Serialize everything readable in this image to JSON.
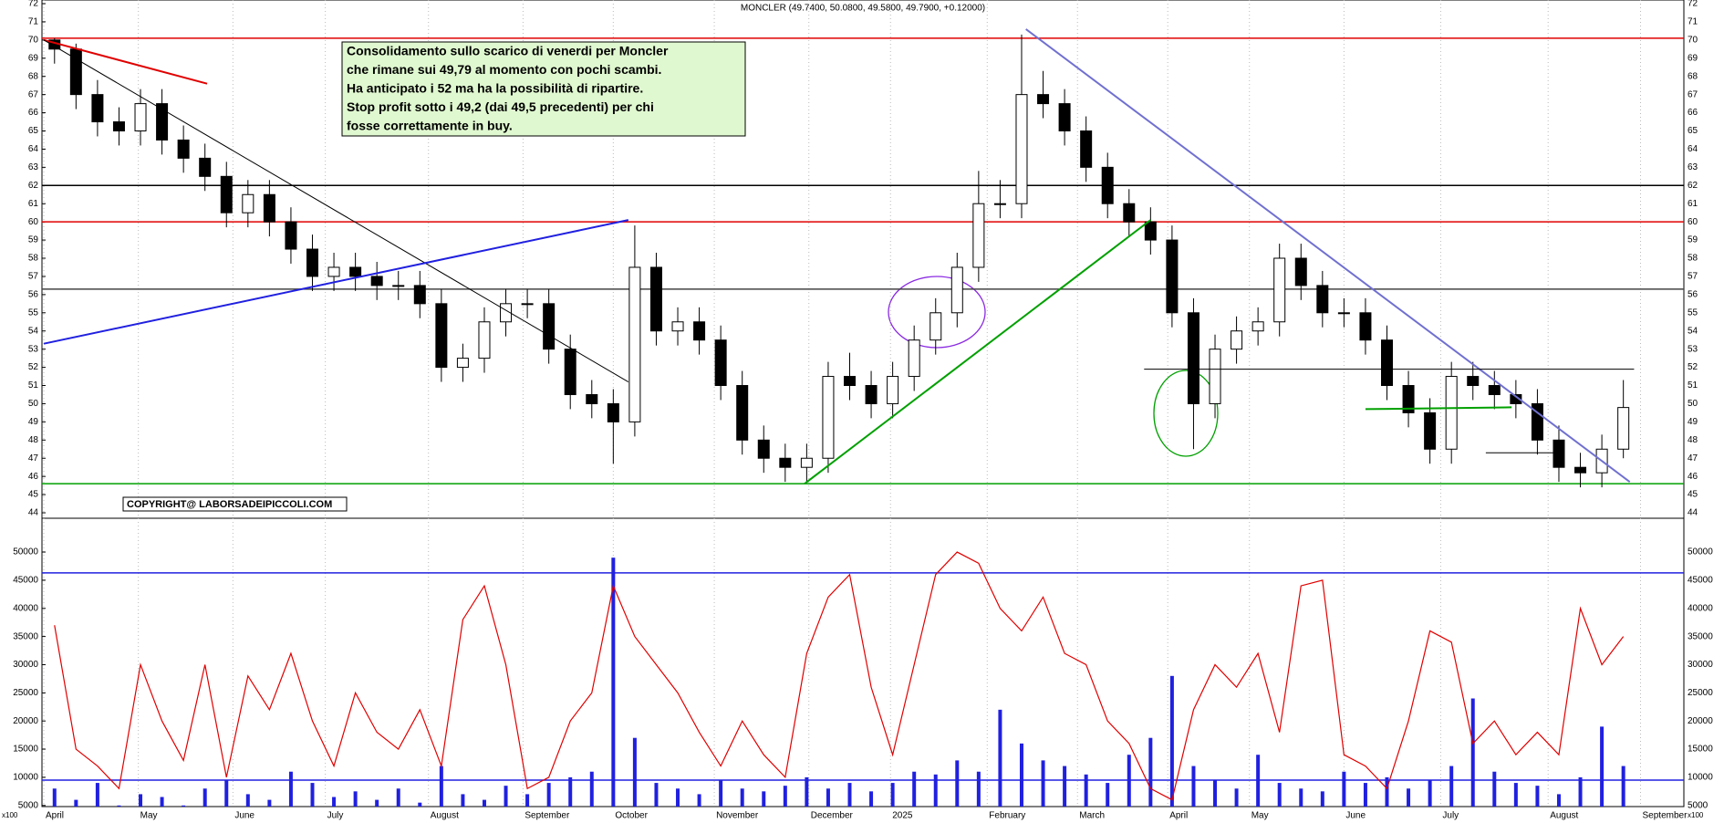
{
  "chart_data": [
    {
      "type": "candlestick",
      "title": "MONCLER (49.7400, 50.0800, 49.5800, 49.7900, +0.12000)",
      "annotation": [
        "Consolidamento sullo scarico di venerdi per Moncler",
        "che rimane sui 49,79 al momento con pochi scambi.",
        "Ha anticipato i 52 ma ha la possibilità di ripartire.",
        "Stop profit sotto i 49,2 (dai 49,5 precedenti) per chi",
        "fosse correttamente in buy."
      ],
      "copyright": "COPYRIGHT@ LABORSADEIPICCOLI.COM",
      "open": [
        70,
        69.5,
        67,
        65.5,
        65,
        66.5,
        64.5,
        63.5,
        62.5,
        60.5,
        61.5,
        60,
        58.5,
        57,
        57.5,
        57,
        56.5,
        56.5,
        55.5,
        52,
        52.5,
        54.5,
        55.5,
        55.5,
        53,
        50.5,
        50,
        49,
        57.5,
        54,
        54.5,
        53.5,
        51,
        48,
        47,
        46.5,
        47,
        51.5,
        51,
        50,
        51.5,
        53.5,
        55,
        57.5,
        61,
        61,
        67,
        66.5,
        65,
        63,
        61,
        60,
        59,
        55,
        50,
        53,
        54,
        54.5,
        58,
        56.5,
        55,
        55,
        53.5,
        51,
        49.5,
        47.5,
        51.5,
        51,
        50.5,
        50,
        48,
        46.5,
        46.2,
        47.5
      ],
      "high": [
        70.1,
        69.8,
        67.8,
        66.3,
        67.3,
        67.3,
        65.3,
        64.3,
        63.3,
        62.3,
        62.3,
        60.8,
        59.3,
        58.3,
        58.3,
        57.8,
        57.3,
        57.3,
        56.3,
        53.3,
        55.3,
        56.3,
        56.3,
        56.3,
        53.8,
        51.3,
        50.8,
        59.8,
        58.3,
        55.3,
        55.3,
        54.3,
        51.8,
        48.8,
        47.8,
        47.8,
        52.3,
        52.8,
        51.8,
        52.3,
        54.3,
        55.8,
        58.3,
        62.8,
        62.3,
        70.3,
        68.3,
        67.3,
        65.8,
        63.8,
        61.8,
        60.8,
        59.8,
        55.8,
        53.8,
        54.8,
        55.3,
        58.8,
        58.8,
        57.3,
        55.8,
        55.8,
        54.3,
        51.8,
        50.3,
        52.3,
        52.3,
        51.8,
        51.3,
        50.8,
        48.8,
        47.3,
        48.3,
        51.3
      ],
      "low": [
        68.7,
        66.2,
        64.7,
        64.2,
        64.2,
        63.7,
        62.7,
        61.7,
        59.7,
        59.7,
        59.2,
        57.7,
        56.2,
        56.2,
        56.2,
        55.7,
        55.7,
        54.7,
        51.2,
        51.2,
        51.7,
        53.7,
        54.7,
        52.2,
        49.7,
        49.2,
        46.7,
        48.2,
        53.2,
        53.2,
        52.7,
        50.2,
        47.2,
        46.2,
        45.7,
        45.7,
        46.2,
        50.2,
        49.2,
        49.2,
        50.7,
        52.7,
        54.2,
        56.7,
        60.2,
        60.2,
        65.7,
        64.2,
        62.2,
        60.2,
        59.2,
        58.2,
        54.2,
        47.5,
        49.2,
        52.2,
        53.2,
        53.7,
        55.7,
        54.2,
        54.2,
        52.7,
        50.2,
        48.7,
        46.7,
        46.7,
        50.2,
        49.7,
        49.2,
        47.2,
        45.7,
        45.4,
        45.4,
        47.0
      ],
      "close": [
        69.5,
        67,
        65.5,
        65,
        66.5,
        64.5,
        63.5,
        62.5,
        60.5,
        61.5,
        60,
        58.5,
        57,
        57.5,
        57,
        56.5,
        56.5,
        55.5,
        52,
        52.5,
        54.5,
        55.5,
        55.5,
        53,
        50.5,
        50,
        49,
        57.5,
        54,
        54.5,
        53.5,
        51,
        48,
        47,
        46.5,
        47,
        51.5,
        51,
        50,
        51.5,
        53.5,
        55,
        57.5,
        61,
        61,
        67,
        66.5,
        65,
        63,
        61,
        60,
        59,
        55,
        50,
        53,
        54,
        54.5,
        58,
        56.5,
        55,
        55,
        53.5,
        51,
        49.5,
        47.5,
        51.5,
        51,
        50.5,
        50,
        48,
        46.5,
        46.2,
        47.5,
        49.79
      ],
      "xlim": [
        0,
        74
      ],
      "xticks": [
        {
          "value": 0,
          "label": "April"
        },
        {
          "value": 4.4,
          "label": "May"
        },
        {
          "value": 8.8,
          "label": "June"
        },
        {
          "value": 13.1,
          "label": "July"
        },
        {
          "value": 17.9,
          "label": "August"
        },
        {
          "value": 22.3,
          "label": "September"
        },
        {
          "value": 26.5,
          "label": "October"
        },
        {
          "value": 31.2,
          "label": "November"
        },
        {
          "value": 35.6,
          "label": "December"
        },
        {
          "value": 39.4,
          "label": "2025"
        },
        {
          "value": 43.9,
          "label": "February"
        },
        {
          "value": 48.1,
          "label": "March"
        },
        {
          "value": 52.3,
          "label": "April"
        },
        {
          "value": 56.1,
          "label": "May"
        },
        {
          "value": 60.5,
          "label": "June"
        },
        {
          "value": 65,
          "label": "July"
        },
        {
          "value": 70,
          "label": "August"
        },
        {
          "value": 74.3,
          "label": "September"
        }
      ],
      "ylim": [
        43.7,
        72.2
      ],
      "yticks": [
        44,
        45,
        46,
        47,
        48,
        49,
        50,
        51,
        52,
        53,
        54,
        55,
        56,
        57,
        58,
        59,
        60,
        61,
        62,
        63,
        64,
        65,
        66,
        67,
        68,
        69,
        70,
        71,
        72
      ],
      "hlines": [
        {
          "value": 70.1,
          "color": "#e00000"
        },
        {
          "value": 62,
          "color": "#000000"
        },
        {
          "value": 60,
          "color": "#e00000"
        },
        {
          "value": 56.3,
          "color": "#444444"
        },
        {
          "value": 45.6,
          "color": "#00a000"
        }
      ],
      "overlays": [
        {
          "color": "#e00000",
          "x": [
            0,
            7.6
          ],
          "y": [
            70,
            67.6
          ]
        },
        {
          "color": "#000000",
          "x": [
            0,
            27.2
          ],
          "y": [
            70,
            51.2
          ]
        },
        {
          "color": "#2020e0",
          "x": [
            0,
            27.2
          ],
          "y": [
            53.3,
            60.1
          ]
        },
        {
          "color": "#7070d0",
          "x": [
            45.7,
            73.8
          ],
          "y": [
            70.6,
            45.7
          ]
        },
        {
          "color": "#00a000",
          "x": [
            35.4,
            51.5
          ],
          "y": [
            45.6,
            60.1
          ]
        },
        {
          "color": "#00a000",
          "x": [
            61.5,
            68.3
          ],
          "y": [
            49.7,
            49.8
          ]
        },
        {
          "color": "#000000",
          "x": [
            51.2,
            74
          ],
          "y": [
            51.9,
            51.9
          ]
        },
        {
          "color": "#000000",
          "x": [
            67.1,
            70.5
          ],
          "y": [
            47.3,
            47.3
          ]
        }
      ]
    },
    {
      "type": "volume",
      "unit": "x100",
      "series": [
        {
          "color": "#2020e0",
          "values": [
            8000,
            6000,
            9000,
            5000,
            7000,
            6500,
            5000,
            8000,
            9500,
            7000,
            6000,
            11000,
            9000,
            6500,
            7500,
            6000,
            8000,
            5500,
            12000,
            7000,
            6000,
            8500,
            7000,
            9000,
            10000,
            11000,
            49000,
            17000,
            9000,
            8000,
            7000,
            9500,
            8000,
            7500,
            8500,
            10000,
            8000,
            9000,
            7500,
            9000,
            11000,
            10500,
            13000,
            11000,
            22000,
            16000,
            13000,
            12000,
            10500,
            9000,
            14000,
            17000,
            28000,
            12000,
            9500,
            8000,
            14000,
            9000,
            8000,
            7500,
            11000,
            9000,
            10000,
            8000,
            9500,
            12000,
            24000,
            11000,
            9000,
            8500,
            7000,
            10000,
            19000,
            12000
          ]
        },
        {
          "color": "#e00000",
          "values": [
            37000,
            15000,
            12000,
            8000,
            30000,
            20000,
            13000,
            30000,
            10000,
            28000,
            22000,
            32000,
            20000,
            12000,
            25000,
            18000,
            15000,
            22000,
            12000,
            38000,
            44000,
            30000,
            8000,
            10000,
            20000,
            25000,
            44000,
            35000,
            30000,
            25000,
            18000,
            12000,
            20000,
            14000,
            10000,
            32000,
            42000,
            46000,
            26000,
            14000,
            30000,
            46000,
            50000,
            48000,
            40000,
            36000,
            42000,
            32000,
            30000,
            20000,
            16000,
            8000,
            6000,
            22000,
            30000,
            26000,
            32000,
            18000,
            44000,
            45000,
            14000,
            12000,
            8000,
            20000,
            36000,
            34000,
            16000,
            20000,
            14000,
            18000,
            14000,
            40000,
            30000,
            35000
          ]
        }
      ],
      "ylim": [
        4800,
        56000
      ],
      "yticks": [
        5000,
        10000,
        15000,
        20000,
        25000,
        30000,
        35000,
        40000,
        45000,
        50000
      ],
      "hlines": [
        {
          "value": 46300,
          "color": "#2020e0"
        },
        {
          "value": 9500,
          "color": "#2020e0"
        }
      ]
    }
  ]
}
